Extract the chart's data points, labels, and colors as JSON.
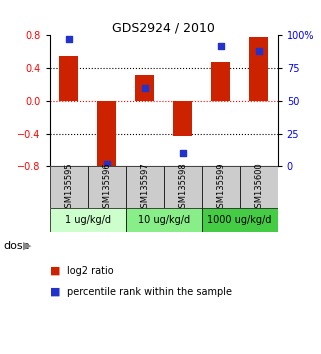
{
  "title": "GDS2924 / 2010",
  "samples": [
    "GSM135595",
    "GSM135596",
    "GSM135597",
    "GSM135598",
    "GSM135599",
    "GSM135600"
  ],
  "log2_ratio": [
    0.55,
    -0.85,
    0.32,
    -0.43,
    0.48,
    0.78
  ],
  "percentile_rank": [
    97,
    2,
    60,
    10,
    92,
    88
  ],
  "bar_color": "#cc2200",
  "dot_color": "#2233cc",
  "ylim_left": [
    -0.8,
    0.8
  ],
  "ylim_right": [
    0,
    100
  ],
  "yticks_left": [
    -0.8,
    -0.4,
    0.0,
    0.4,
    0.8
  ],
  "yticks_right": [
    0,
    25,
    50,
    75,
    100
  ],
  "ytick_labels_right": [
    "0",
    "25",
    "50",
    "75",
    "100%"
  ],
  "hlines": [
    0.4,
    0.0,
    -0.4
  ],
  "hline_colors": [
    "black",
    "red",
    "black"
  ],
  "dose_groups": [
    {
      "label": "1 ug/kg/d",
      "samples": [
        0,
        1
      ],
      "color": "#ccffcc"
    },
    {
      "label": "10 ug/kg/d",
      "samples": [
        2,
        3
      ],
      "color": "#88ee88"
    },
    {
      "label": "1000 ug/kg/d",
      "samples": [
        4,
        5
      ],
      "color": "#44cc44"
    }
  ],
  "dose_label": "dose",
  "legend_bar_label": "log2 ratio",
  "legend_dot_label": "percentile rank within the sample",
  "sample_box_color": "#cccccc",
  "bar_width": 0.5,
  "dot_size": 18
}
